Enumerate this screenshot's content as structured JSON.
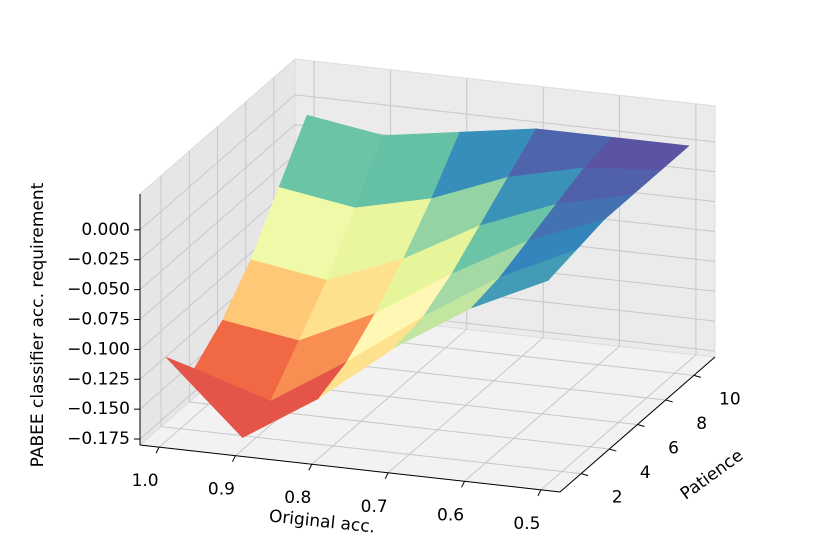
{
  "chart_data": {
    "type": "surface",
    "xlabel": "Original acc.",
    "ylabel": "Patience",
    "zlabel": "PABEE classifier acc. requirement",
    "x": [
      1.0,
      0.9,
      0.8,
      0.7,
      0.6,
      0.5
    ],
    "y": [
      1,
      3,
      5,
      7,
      9,
      11
    ],
    "z": [
      [
        -0.11,
        -0.17,
        -0.13,
        -0.08,
        -0.04,
        -0.01
      ],
      [
        -0.14,
        -0.16,
        -0.12,
        -0.075,
        -0.035,
        -0.005
      ],
      [
        -0.12,
        -0.13,
        -0.1,
        -0.06,
        -0.025,
        0
      ],
      [
        -0.09,
        -0.1,
        -0.075,
        -0.04,
        -0.015,
        0
      ],
      [
        -0.05,
        -0.06,
        -0.045,
        -0.02,
        -0.005,
        0
      ],
      [
        -0.01,
        -0.02,
        -0.01,
        0,
        0,
        0
      ]
    ],
    "xlim": [
      1.025,
      0.475
    ],
    "ylim": [
      0.5,
      11.5
    ],
    "zlim": [
      -0.18,
      0.03
    ],
    "xticks": [
      {
        "value": 1,
        "label": "1.0"
      },
      0.9,
      0.8,
      0.7,
      0.6,
      0.5
    ],
    "yticks": [
      2,
      4,
      6,
      8,
      10
    ],
    "zticks": [
      {
        "value": 0,
        "label": "0.000"
      },
      {
        "value": -0.025,
        "label": "−0.025"
      },
      {
        "value": -0.05,
        "label": "−0.050"
      },
      {
        "value": -0.075,
        "label": "−0.075"
      },
      {
        "value": -0.1,
        "label": "−0.100"
      },
      {
        "value": -0.125,
        "label": "−0.125"
      },
      {
        "value": -0.15,
        "label": "−0.150"
      },
      {
        "value": -0.175,
        "label": "−0.175"
      }
    ],
    "grid": true,
    "colors": [
      "#9e0142",
      "#d53e4f",
      "#f46d43",
      "#fdae61",
      "#fee08b",
      "#ffffbf",
      "#e6f598",
      "#abdda4",
      "#66c2a5",
      "#3288bd",
      "#5e4fa2"
    ]
  }
}
